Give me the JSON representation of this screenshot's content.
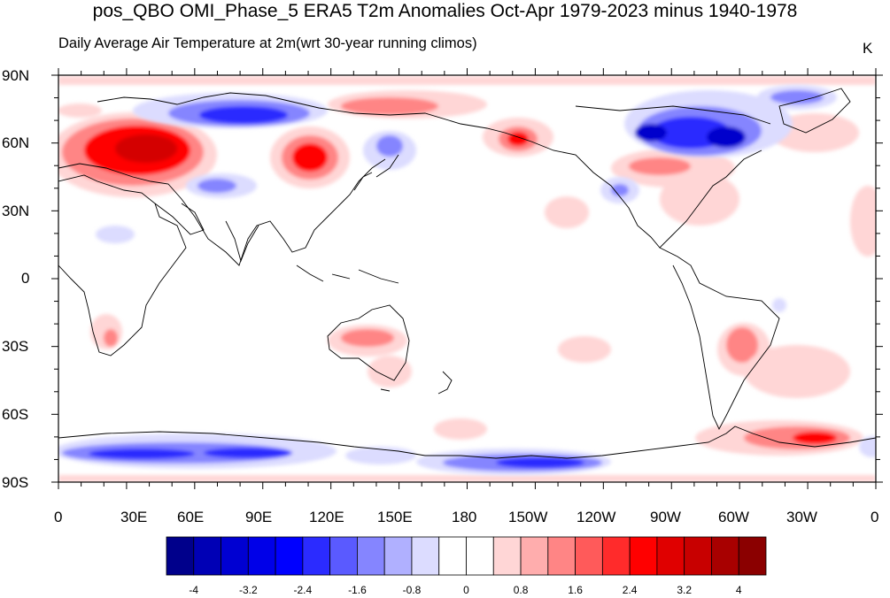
{
  "title": "pos_QBO OMI_Phase_5 ERA5 T2m Anomalies Oct-Apr 1979-2023 minus 1940-1978",
  "subtitle": "Daily Average Air Temperature at 2m(wrt 30-year running climos)",
  "units": "K",
  "lat_labels": [
    "90N",
    "60N",
    "30N",
    "0",
    "30S",
    "60S",
    "90S"
  ],
  "lon_labels": [
    "0",
    "30E",
    "60E",
    "90E",
    "120E",
    "150E",
    "180",
    "150W",
    "120W",
    "90W",
    "60W",
    "30W",
    "0"
  ],
  "colorbar": {
    "colors": [
      "#00008b",
      "#0000b5",
      "#0000d2",
      "#0000e8",
      "#0000ff",
      "#2b2bff",
      "#5a5aff",
      "#8585ff",
      "#b0b0ff",
      "#dcdcff",
      "#ffffff",
      "#ffffff",
      "#ffd6d6",
      "#ffadad",
      "#ff8585",
      "#ff5a5a",
      "#ff2b2b",
      "#ff0000",
      "#e00000",
      "#c80000",
      "#a80000",
      "#8b0000"
    ],
    "tick_labels": [
      "-4",
      "-3.2",
      "-2.4",
      "-1.6",
      "-0.8",
      "0",
      "0.8",
      "1.6",
      "2.4",
      "3.2",
      "4"
    ]
  },
  "map_colors": {
    "positive_light": "#ffd6d6",
    "positive_mid": "#ff8585",
    "positive_strong": "#ff0000",
    "positive_deep": "#d40000",
    "negative_light": "#dcdcff",
    "negative_mid": "#8585ff",
    "negative_strong": "#2b2bff",
    "negative_deep": "#0000cc"
  }
}
